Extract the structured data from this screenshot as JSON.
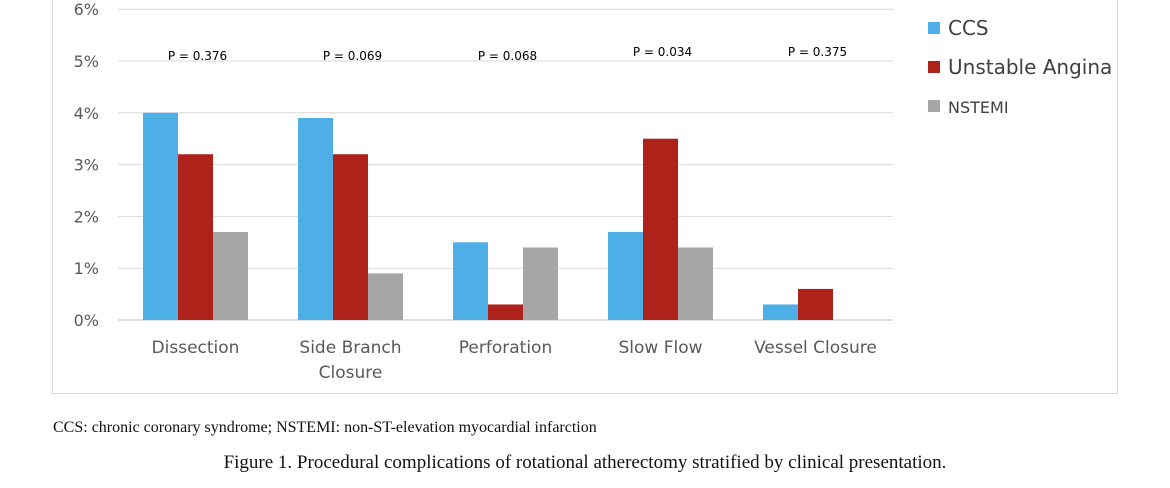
{
  "chart_data": {
    "type": "bar",
    "title": "",
    "xlabel": "",
    "ylabel": "",
    "ylim": [
      0,
      6
    ],
    "yticks": [
      0,
      1,
      2,
      3,
      4,
      5,
      6
    ],
    "ytick_labels": [
      "0%",
      "1%",
      "2%",
      "3%",
      "4%",
      "5%",
      "6%"
    ],
    "grid": true,
    "legend_position": "right",
    "categories": [
      {
        "lines": [
          "Dissection"
        ]
      },
      {
        "lines": [
          "Side Branch",
          "Closure"
        ]
      },
      {
        "lines": [
          "Perforation"
        ]
      },
      {
        "lines": [
          "Slow Flow"
        ]
      },
      {
        "lines": [
          "Vessel Closure"
        ]
      }
    ],
    "series": [
      {
        "name": "CCS",
        "color": "#4eaee6",
        "values": [
          4.0,
          3.9,
          1.5,
          1.7,
          0.3
        ]
      },
      {
        "name": "Unstable Angina",
        "color": "#ae2219",
        "values": [
          3.2,
          3.2,
          0.3,
          3.5,
          0.6
        ]
      },
      {
        "name": "NSTEMI",
        "color": "#a6a6a6",
        "values": [
          1.7,
          0.9,
          1.4,
          1.4,
          0.0
        ]
      }
    ],
    "p_values": [
      "P = 0.376",
      "P = 0.069",
      "P = 0.068",
      "P = 0.034",
      "P = 0.375"
    ]
  },
  "footnote": "CCS: chronic coronary syndrome; NSTEMI: non-ST-elevation myocardial infarction",
  "caption": "Figure 1.  Procedural complications of rotational atherectomy stratified by clinical presentation."
}
